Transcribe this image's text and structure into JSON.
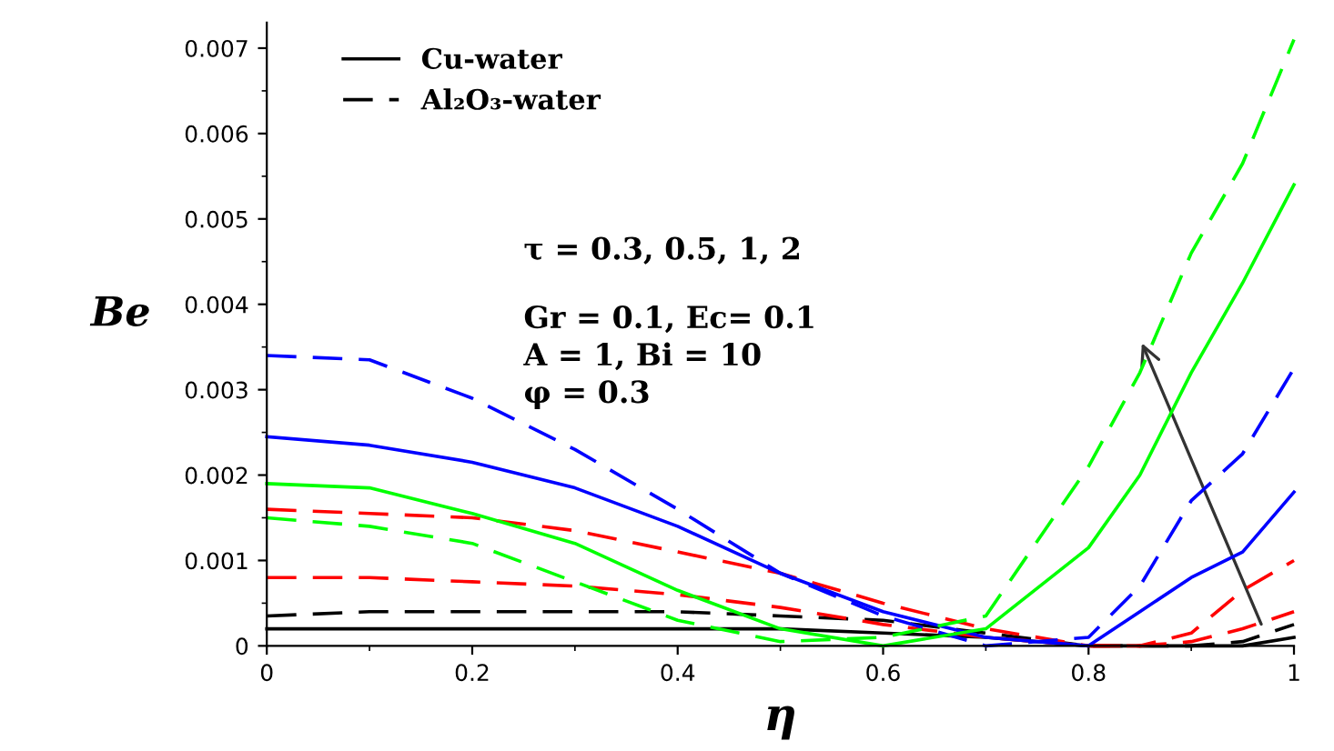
{
  "chart_data": {
    "type": "line",
    "xlabel": "η",
    "ylabel": "Be",
    "x": [
      0,
      0.1,
      0.2,
      0.3,
      0.4,
      0.5,
      0.6,
      0.7,
      0.8,
      0.85,
      0.9,
      0.95,
      1.0
    ],
    "series": [
      {
        "name": "Cu-water",
        "color": "#000000",
        "line_style": "solid",
        "values": [
          0.0002,
          0.0002,
          0.0002,
          0.0002,
          0.0002,
          0.0002,
          0.00015,
          0.0001,
          0,
          0,
          0,
          0,
          0.0001
        ]
      },
      {
        "name": "Al₂O₃-water",
        "color": "#000000",
        "line_style": "dashed",
        "values": [
          0.00035,
          0.0004,
          0.0004,
          0.0004,
          0.0004,
          0.00035,
          0.0003,
          0.00015,
          0,
          0,
          0,
          5e-05,
          0.00025
        ]
      },
      {
        "color": "#ff0000",
        "line_style": "dashed",
        "values": [
          0.0008,
          0.0008,
          0.00075,
          0.0007,
          0.0006,
          0.00045,
          0.00025,
          0.0001,
          0,
          0,
          5e-05,
          0.0002,
          0.0004
        ]
      },
      {
        "color": "#ff0000",
        "line_style": "dashed",
        "values": [
          0.0016,
          0.00155,
          0.0015,
          0.00135,
          0.0011,
          0.00085,
          0.0005,
          0.0002,
          0,
          0,
          0.00015,
          0.00065,
          0.001
        ]
      },
      {
        "color": "#0000ff",
        "line_style": "solid",
        "values": [
          0.00245,
          0.00235,
          0.00215,
          0.00185,
          0.0014,
          0.00085,
          0.0004,
          0.0001,
          0,
          0.0004,
          0.0008,
          0.0011,
          0.0018
        ]
      },
      {
        "color": "#0000ff",
        "line_style": "dashed",
        "values": [
          0.0034,
          0.00335,
          0.0029,
          0.0023,
          0.0016,
          0.00085,
          0.00035,
          0,
          0.0001,
          0.0007,
          0.0017,
          0.00225,
          0.00325
        ]
      },
      {
        "color": "#00ff00",
        "line_style": "solid",
        "values": [
          0.0019,
          0.00185,
          0.00155,
          0.0012,
          0.00065,
          0.0002,
          0,
          0.0002,
          0.00115,
          0.002,
          0.0032,
          0.00425,
          0.0054
        ]
      },
      {
        "color": "#00ff00",
        "line_style": "dashed",
        "values": [
          0.0015,
          0.0014,
          0.0012,
          0.00075,
          0.0003,
          5e-05,
          0.0001,
          0.00035,
          0.0021,
          0.0032,
          0.0046,
          0.00565,
          0.0071
        ]
      }
    ],
    "xlim": [
      0,
      1
    ],
    "ylim": [
      0,
      0.0073
    ],
    "xticks": [
      0,
      0.2,
      0.4,
      0.6,
      0.8,
      1
    ],
    "yticks": [
      0,
      0.001,
      0.002,
      0.003,
      0.004,
      0.005,
      0.006,
      0.007
    ],
    "grid": false,
    "legend": "top left",
    "annotations": [
      "τ = 0.3, 0.5, 1, 2",
      "Gr = 0.1, Ec= 0.1",
      "A = 1, Bi = 10",
      "φ = 0.3"
    ]
  }
}
